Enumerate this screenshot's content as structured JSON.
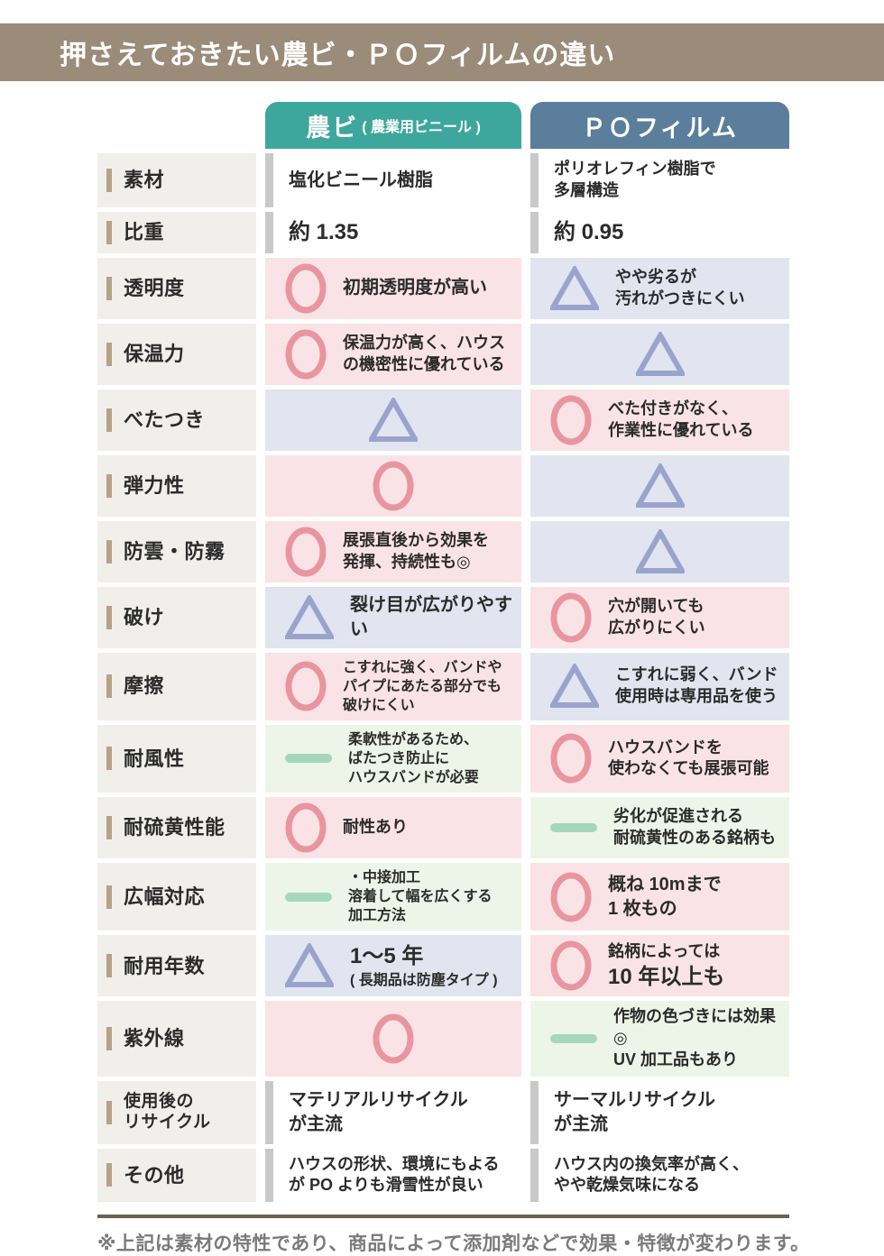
{
  "page": {
    "title": "押さえておきたい農ビ・ＰＯフィルムの違い",
    "footnote": "※上記は素材の特性であり、商品によって添加剤などで効果・特徴が変わります。"
  },
  "colors": {
    "title_bar": "#9b8b79",
    "nobi_header": "#3ea79d",
    "po_header": "#5a7e9b",
    "label_bg": "#f0efec",
    "label_tick": "#b7a287",
    "pink_bg": "#fae3e6",
    "lavender_bg": "#e2e5f0",
    "green_bg": "#edf5e8",
    "circle_stroke": "#e995a0",
    "triangle_stroke": "#99a3cd",
    "dash_fill": "#a5d8ba",
    "plain_bar": "#c9c9c9",
    "foot_line": "#6b6152",
    "footnote_text": "#7a7a7a"
  },
  "columns": {
    "nobi": {
      "label": "農ビ",
      "sub": "( 農業用ビニール )"
    },
    "po": {
      "label": "ＰＯフィルム"
    }
  },
  "table": {
    "rows": [
      {
        "label": [
          "素材"
        ],
        "nobi": {
          "mark": "none",
          "lines": [
            "塩化ビニール樹脂"
          ],
          "sizes": [
            "ml"
          ]
        },
        "po": {
          "mark": "none",
          "lines": [
            "ポリオレフィン樹脂で",
            "多層構造"
          ],
          "sizes": [
            "md",
            "md"
          ]
        }
      },
      {
        "label": [
          "比重"
        ],
        "nobi": {
          "mark": "none",
          "lines": [
            "約 1.35"
          ],
          "sizes": [
            "lg"
          ]
        },
        "po": {
          "mark": "none",
          "lines": [
            "約 0.95"
          ],
          "sizes": [
            "lg"
          ]
        }
      },
      {
        "label": [
          "透明度"
        ],
        "nobi": {
          "mark": "circle",
          "lines": [
            "初期透明度が高い"
          ],
          "sizes": [
            "ml"
          ]
        },
        "po": {
          "mark": "triangle",
          "lines": [
            "やや劣るが",
            "汚れがつきにくい"
          ],
          "sizes": [
            "md",
            "md"
          ]
        }
      },
      {
        "label": [
          "保温力"
        ],
        "nobi": {
          "mark": "circle",
          "lines": [
            "保温力が高く、ハウス",
            "の機密性に優れている"
          ],
          "sizes": [
            "md",
            "md"
          ]
        },
        "po": {
          "mark": "triangle",
          "lines": []
        }
      },
      {
        "label": [
          "べたつき"
        ],
        "nobi": {
          "mark": "triangle",
          "lines": []
        },
        "po": {
          "mark": "circle",
          "lines": [
            "べた付きがなく、",
            "作業性に優れている"
          ],
          "sizes": [
            "md",
            "md"
          ]
        }
      },
      {
        "label": [
          "弾力性"
        ],
        "nobi": {
          "mark": "circle",
          "lines": []
        },
        "po": {
          "mark": "triangle",
          "lines": []
        }
      },
      {
        "label": [
          "防雲・防霧"
        ],
        "nobi": {
          "mark": "circle",
          "lines": [
            "展張直後から効果を",
            "発揮、持続性も◎"
          ],
          "sizes": [
            "md",
            "md"
          ]
        },
        "po": {
          "mark": "triangle",
          "lines": []
        }
      },
      {
        "label": [
          "破け"
        ],
        "nobi": {
          "mark": "triangle",
          "lines": [
            "裂け目が広がりやすい"
          ],
          "sizes": [
            "ml"
          ]
        },
        "po": {
          "mark": "circle",
          "lines": [
            "穴が開いても",
            "広がりにくい"
          ],
          "sizes": [
            "md",
            "md"
          ]
        }
      },
      {
        "label": [
          "摩擦"
        ],
        "nobi": {
          "mark": "circle",
          "lines": [
            "こすれに強く、バンドや",
            "パイプにあたる部分でも",
            "破けにくい"
          ],
          "sizes": [
            "sm",
            "sm",
            "sm"
          ]
        },
        "po": {
          "mark": "triangle",
          "lines": [
            "こすれに弱く、バンド",
            "使用時は専用品を使う"
          ],
          "sizes": [
            "md",
            "md"
          ]
        }
      },
      {
        "label": [
          "耐風性"
        ],
        "nobi": {
          "mark": "dash",
          "lines": [
            "柔軟性があるため、",
            "ばたつき防止に",
            "ハウスバンドが必要"
          ],
          "sizes": [
            "sm",
            "sm",
            "sm"
          ]
        },
        "po": {
          "mark": "circle",
          "lines": [
            "ハウスバンドを",
            "使わなくても展張可能"
          ],
          "sizes": [
            "md",
            "md"
          ]
        }
      },
      {
        "label": [
          "耐硫黄性能"
        ],
        "nobi": {
          "mark": "circle",
          "lines": [
            "耐性あり"
          ],
          "sizes": [
            "md"
          ]
        },
        "po": {
          "mark": "dash",
          "lines": [
            "劣化が促進される",
            "耐硫黄性のある銘柄も"
          ],
          "sizes": [
            "md",
            "md"
          ]
        }
      },
      {
        "label": [
          "広幅対応"
        ],
        "nobi": {
          "mark": "dash",
          "lines": [
            "・中接加工",
            "溶着して幅を広くする",
            "加工方法"
          ],
          "sizes": [
            "sm",
            "sm",
            "sm"
          ]
        },
        "po": {
          "mark": "circle",
          "lines": [
            "概ね 10mまで",
            "1 枚もの"
          ],
          "sizes": [
            "ml",
            "ml"
          ]
        }
      },
      {
        "label": [
          "耐用年数"
        ],
        "nobi": {
          "mark": "triangle",
          "lines": [
            "1～5 年",
            "( 長期品は防塵タイプ )"
          ],
          "sizes": [
            "lg",
            "sm"
          ]
        },
        "po": {
          "mark": "circle",
          "lines": [
            "銘柄によっては",
            "10 年以上も"
          ],
          "sizes": [
            "md",
            "lg"
          ]
        }
      },
      {
        "label": [
          "紫外線"
        ],
        "nobi": {
          "mark": "circle",
          "lines": []
        },
        "po": {
          "mark": "dash",
          "lines": [
            "作物の色づきには効果◎",
            "UV 加工品もあり"
          ],
          "sizes": [
            "md",
            "md"
          ]
        }
      },
      {
        "label": [
          "使用後の",
          "リサイクル"
        ],
        "label_small": true,
        "nobi": {
          "mark": "none",
          "lines": [
            "マテリアルリサイクル",
            "が主流"
          ],
          "sizes": [
            "ml",
            "ml"
          ]
        },
        "po": {
          "mark": "none",
          "lines": [
            "サーマルリサイクル",
            "が主流"
          ],
          "sizes": [
            "ml",
            "ml"
          ]
        }
      },
      {
        "label": [
          "その他"
        ],
        "nobi": {
          "mark": "none",
          "lines": [
            "ハウスの形状、環境にもよる",
            "が PO よりも滑雪性が良い"
          ],
          "sizes": [
            "md",
            "md"
          ]
        },
        "po": {
          "mark": "none",
          "lines": [
            "ハウス内の換気率が高く、",
            "やや乾燥気味になる"
          ],
          "sizes": [
            "md",
            "md"
          ]
        }
      }
    ]
  }
}
